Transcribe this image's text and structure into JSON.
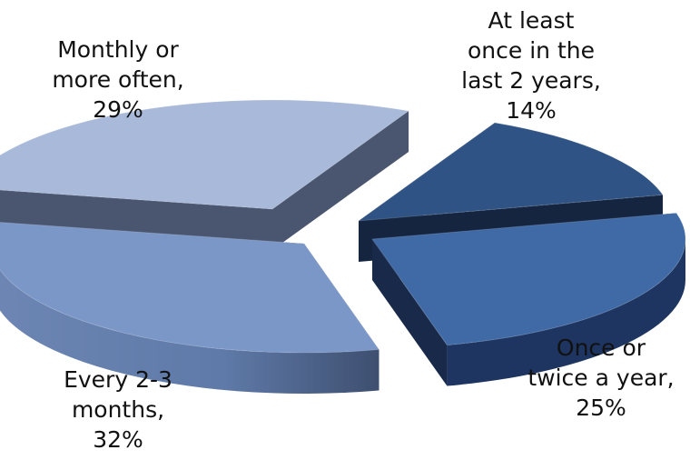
{
  "chart_data": {
    "type": "pie",
    "style": "3d-exploded",
    "title": "",
    "slices": [
      {
        "label": "At least once in the last 2 years",
        "value": 14,
        "label_text": "At least\nonce in the\nlast 2 years,\n14%",
        "color": "#2f5384"
      },
      {
        "label": "Once or twice a year",
        "value": 25,
        "label_text": "Once or\ntwice a year,\n25%",
        "color": "#3f6aa6"
      },
      {
        "label": "Every 2-3 months",
        "value": 32,
        "label_text": "Every 2-3\nmonths,\n32%",
        "color": "#7b97c7"
      },
      {
        "label": "Monthly or more often",
        "value": 29,
        "label_text": "Monthly or\nmore often,\n29%",
        "color": "#a9b9d9"
      }
    ]
  }
}
